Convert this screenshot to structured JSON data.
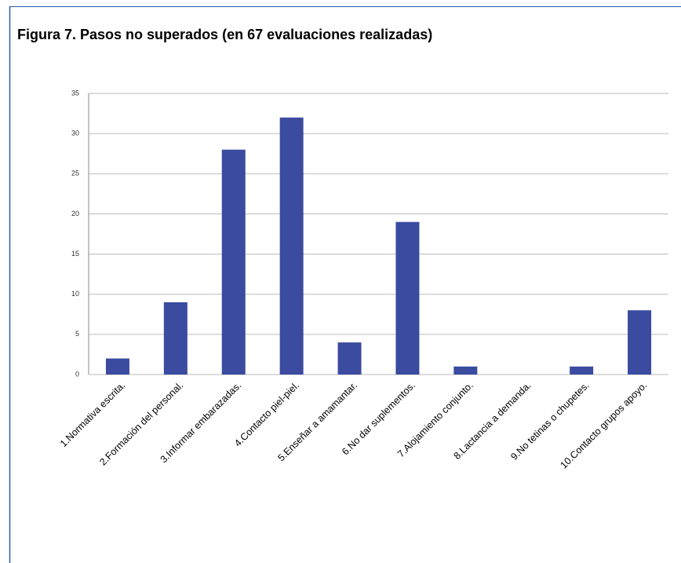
{
  "chart_data": {
    "type": "bar",
    "title": "Figura 7.  Pasos no superados (en 67 evaluaciones realizadas)",
    "categories": [
      "1.Normativa escrita.",
      "2.Formación del personal.",
      "3.Informar embarazadas.",
      "4.Contacto piel-piel.",
      "5.Enseñar a amamantar.",
      "6.No dar suplementos.",
      "7.Alojamiento conjunto.",
      "8.Lactancia a demanda.",
      "9.No tetinas o chupetes.",
      "10.Contacto grupos apoyo."
    ],
    "values": [
      2,
      9,
      28,
      32,
      4,
      19,
      1,
      0,
      1,
      8
    ],
    "color": "#3a4ba0",
    "ylim": [
      0,
      35
    ],
    "yticks": [
      0,
      5,
      10,
      15,
      20,
      25,
      30,
      35
    ],
    "grid": true
  }
}
